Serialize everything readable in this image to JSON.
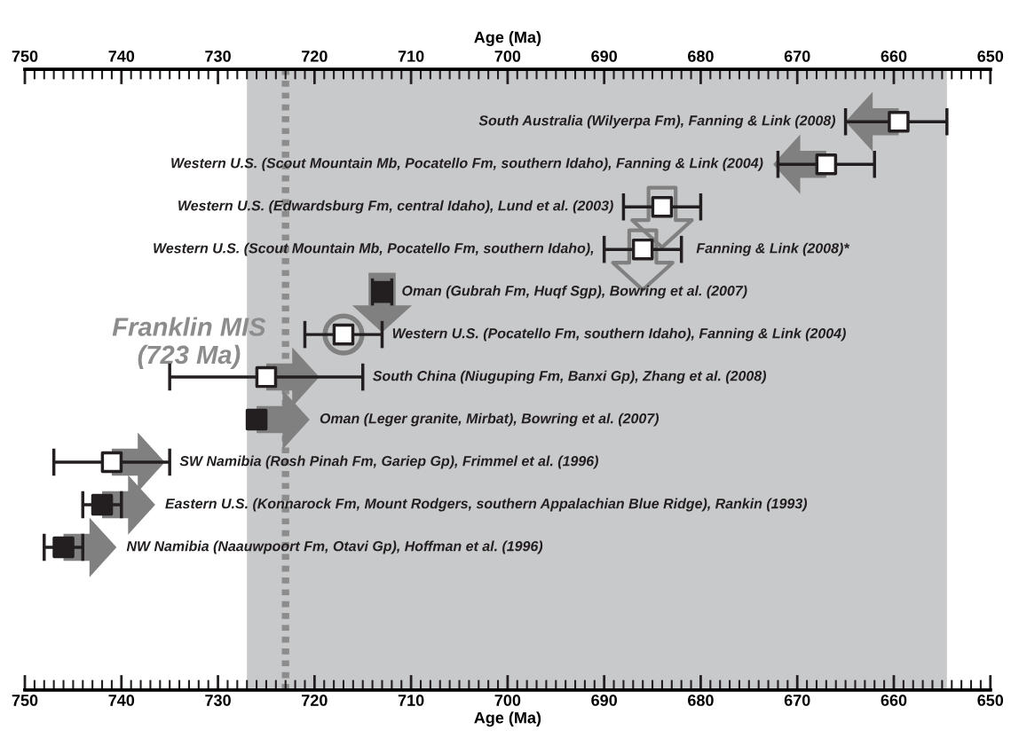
{
  "chart_data": {
    "type": "scatter",
    "orientation": "horizontal",
    "xlabel": "Age (Ma)",
    "x2label": "Age (Ma)",
    "categories": [
      "South Australia (Wilyerpa Fm), Fanning & Link (2008)",
      "Western U.S. (Scout Mountain Mb, Pocatello Fm, southern Idaho), Fanning & Link (2004)",
      "Western U.S. (Edwardsburg Fm, central Idaho), Lund et al. (2003)",
      "Western U.S. (Scout Mountain Mb, Pocatello Fm, southern Idaho), Fanning & Link (2008)*",
      "Oman (Gubrah Fm, Huqf Sgp), Bowring et al. (2007)",
      "Western U.S. (Pocatello Fm, southern Idaho), Fanning & Link (2004)",
      "South China (Niuguping Fm, Banxi Gp), Zhang et al. (2008)",
      "Oman (Leger granite, Mirbat), Bowring et al. (2007)",
      "SW Namibia (Rosh Pinah Fm, Gariep Gp), Frimmel et al. (1996)",
      "Eastern U.S. (Konnarock Fm, Mount Rodgers, southern Appalachian Blue Ridge), Rankin (1993)",
      "NW Namibia (Naauwpoort Fm, Otavi Gp), Hoffman et al. (1996)"
    ],
    "values": [
      659.5,
      667,
      684,
      686,
      713,
      717,
      725,
      726,
      741,
      742,
      746
    ],
    "errors": [
      [
        654.5,
        665
      ],
      [
        662,
        672
      ],
      [
        680,
        688
      ],
      [
        682,
        690
      ],
      [
        712,
        714
      ],
      [
        713,
        721
      ],
      [
        715,
        735
      ],
      null,
      [
        735,
        747
      ],
      [
        740,
        744
      ],
      [
        744,
        748
      ]
    ],
    "colors": [
      "#ffffff",
      "#ffffff",
      "#ffffff",
      "#ffffff",
      "#231f20",
      "#ffffff",
      "#ffffff",
      "#231f20",
      "#ffffff",
      "#231f20",
      "#231f20"
    ],
    "marker": "square",
    "xlim": [
      750,
      650
    ],
    "xticks": [
      750,
      740,
      730,
      720,
      710,
      700,
      690,
      680,
      670,
      660,
      650
    ],
    "x2lim": [
      750,
      650
    ],
    "x2ticks": [
      750,
      740,
      730,
      720,
      710,
      700,
      690,
      680,
      670,
      660,
      650
    ],
    "tick_labels": "x",
    "bands": [
      {
        "axis": "x",
        "from": 727,
        "to": 654.5,
        "color": "#c8c9cb"
      }
    ],
    "ref_lines": [
      {
        "axis": "x",
        "value": 723,
        "label": "Franklin MIS\n(723 Ma)",
        "color": "#8c8c8c",
        "line_style": "dotted"
      }
    ]
  }
}
